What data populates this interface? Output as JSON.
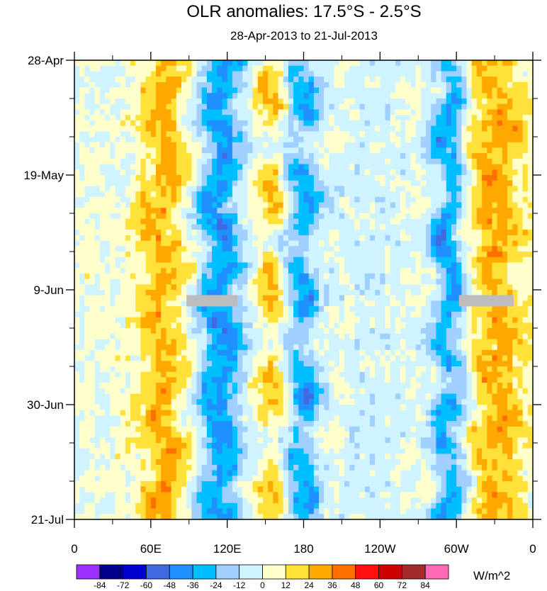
{
  "chart_data": {
    "type": "heatmap",
    "title": "OLR anomalies: 17.5°S - 2.5°S",
    "subtitle": "28-Apr-2013 to 21-Jul-2013",
    "x_ticks": [
      "0",
      "60E",
      "120E",
      "180",
      "120W",
      "60W",
      "0"
    ],
    "x_tick_values": [
      0,
      60,
      120,
      180,
      240,
      300,
      360
    ],
    "xlim": [
      0,
      360
    ],
    "y_ticks": [
      "28-Apr",
      "19-May",
      "9-Jun",
      "30-Jun",
      "21-Jul"
    ],
    "y_tick_values": [
      0,
      21,
      42,
      63,
      84
    ],
    "ylim": [
      0,
      84
    ],
    "colorbar": {
      "labels": [
        "-84",
        "-72",
        "-60",
        "-48",
        "-36",
        "-24",
        "-12",
        "0",
        "12",
        "24",
        "36",
        "48",
        "60",
        "72",
        "84"
      ],
      "colors": [
        "#9b30ff",
        "#00008b",
        "#0000cd",
        "#4169e1",
        "#1e90ff",
        "#00bfff",
        "#a0d0ff",
        "#d0f4ff",
        "#ffffcc",
        "#ffe13a",
        "#ffa800",
        "#ff7000",
        "#ff1010",
        "#cc0000",
        "#a52a2a",
        "#ff69b4"
      ],
      "units": "W/m^2"
    },
    "missing_data_bars": [
      {
        "lon_start": 88,
        "lon_end": 128,
        "day": 44
      },
      {
        "lon_start": 302,
        "lon_end": 345,
        "day": 44
      }
    ],
    "convective_bands": [
      {
        "lon_center": 70,
        "lon_width": 30,
        "sign": "positive"
      },
      {
        "lon_center": 115,
        "lon_width": 30,
        "sign": "negative"
      },
      {
        "lon_center": 160,
        "lon_width": 22,
        "sign": "positive"
      },
      {
        "lon_center": 175,
        "lon_width": 25,
        "sign": "negative"
      },
      {
        "lon_center": 235,
        "lon_width": 50,
        "sign": "weak-negative"
      },
      {
        "lon_center": 295,
        "lon_width": 22,
        "sign": "negative"
      },
      {
        "lon_center": 330,
        "lon_width": 40,
        "sign": "positive"
      }
    ]
  }
}
